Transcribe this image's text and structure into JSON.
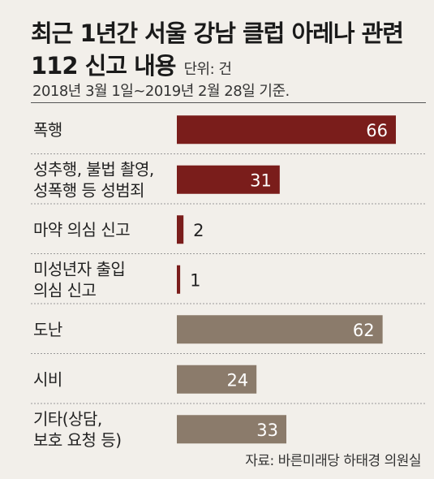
{
  "title_line1": "최근 1년간 서울 강남 클럽 아레나 관련",
  "title_line2": "112 신고 내용",
  "unit": "단위: 건",
  "subtitle": "2018년 3월 1일~2019년 2월 28일 기준.",
  "source": "자료: 바른미래당 하태경 의원실",
  "colors": {
    "red": "#7a1d1b",
    "brown": "#8b7b6b"
  },
  "chart_data": {
    "type": "bar",
    "orientation": "horizontal",
    "categories": [
      [
        "폭행"
      ],
      [
        "성추행, 불법 촬영,",
        "성폭행 등 성범죄"
      ],
      [
        "마약 의심 신고"
      ],
      [
        "미성년자 출입",
        "의심 신고"
      ],
      [
        "도난"
      ],
      [
        "시비"
      ],
      [
        "기타(상담,",
        "보호 요청 등)"
      ]
    ],
    "values": [
      66,
      31,
      2,
      1,
      62,
      24,
      33
    ],
    "colors": [
      "#7a1d1b",
      "#7a1d1b",
      "#7a1d1b",
      "#7a1d1b",
      "#8b7b6b",
      "#8b7b6b",
      "#8b7b6b"
    ],
    "xlim": [
      0,
      66
    ]
  }
}
